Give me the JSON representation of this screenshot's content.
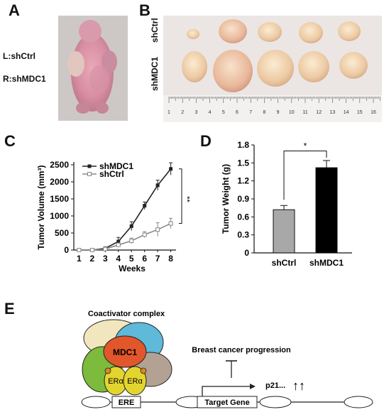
{
  "panels": {
    "a": {
      "letter": "A",
      "label_left": "L:shCtrl",
      "label_right": "R:shMDC1"
    },
    "b": {
      "letter": "B",
      "row_top": "shCtrl",
      "row_bottom": "shMDC1",
      "ruler_numbers": [
        "1",
        "2",
        "3",
        "4",
        "5",
        "6",
        "7",
        "8",
        "9",
        "10",
        "11",
        "12",
        "13",
        "14",
        "15",
        "16"
      ]
    },
    "c": {
      "letter": "C",
      "significance": "**"
    },
    "d": {
      "letter": "D",
      "significance": "*"
    },
    "e": {
      "letter": "E",
      "coactivator": "Coactivator complex",
      "mdc1": "MDC1",
      "era1": "ERα",
      "era2": "ERα",
      "ere": "ERE",
      "target_gene": "Target Gene",
      "progression": "Breast cancer progression",
      "p21": "p21...",
      "arrows": "↑↑"
    }
  },
  "chart_data": [
    {
      "type": "line",
      "panel": "C",
      "xlabel": "Weeks",
      "ylabel": "Tumor Volume (mm³)",
      "x": [
        1,
        2,
        3,
        4,
        5,
        6,
        7,
        8
      ],
      "xlim": [
        0.6,
        8.4
      ],
      "ylim": [
        0,
        2500
      ],
      "yticks": [
        0,
        500,
        1000,
        1500,
        2000,
        2500
      ],
      "legend_position": "top-left",
      "series": [
        {
          "name": "shMDC1",
          "color": "#222222",
          "values": [
            0,
            0,
            50,
            250,
            700,
            1300,
            1900,
            2380
          ],
          "errors": [
            30,
            30,
            40,
            120,
            130,
            110,
            150,
            180
          ]
        },
        {
          "name": "shCtrl",
          "color": "#888888",
          "values": [
            0,
            0,
            30,
            150,
            270,
            450,
            600,
            780
          ],
          "errors": [
            30,
            30,
            30,
            60,
            80,
            90,
            200,
            150
          ]
        }
      ]
    },
    {
      "type": "bar",
      "panel": "D",
      "ylabel": "Tumor Weight (g)",
      "categories": [
        "shCtrl",
        "shMDC1"
      ],
      "values": [
        0.72,
        1.42
      ],
      "errors": [
        0.07,
        0.12
      ],
      "colors": [
        "#a8a8a8",
        "#000000"
      ],
      "ylim": [
        0,
        1.8
      ],
      "yticks": [
        "0",
        "0.3",
        "0.6",
        "0.9",
        "1.2",
        "1.5",
        "1.8"
      ]
    }
  ]
}
